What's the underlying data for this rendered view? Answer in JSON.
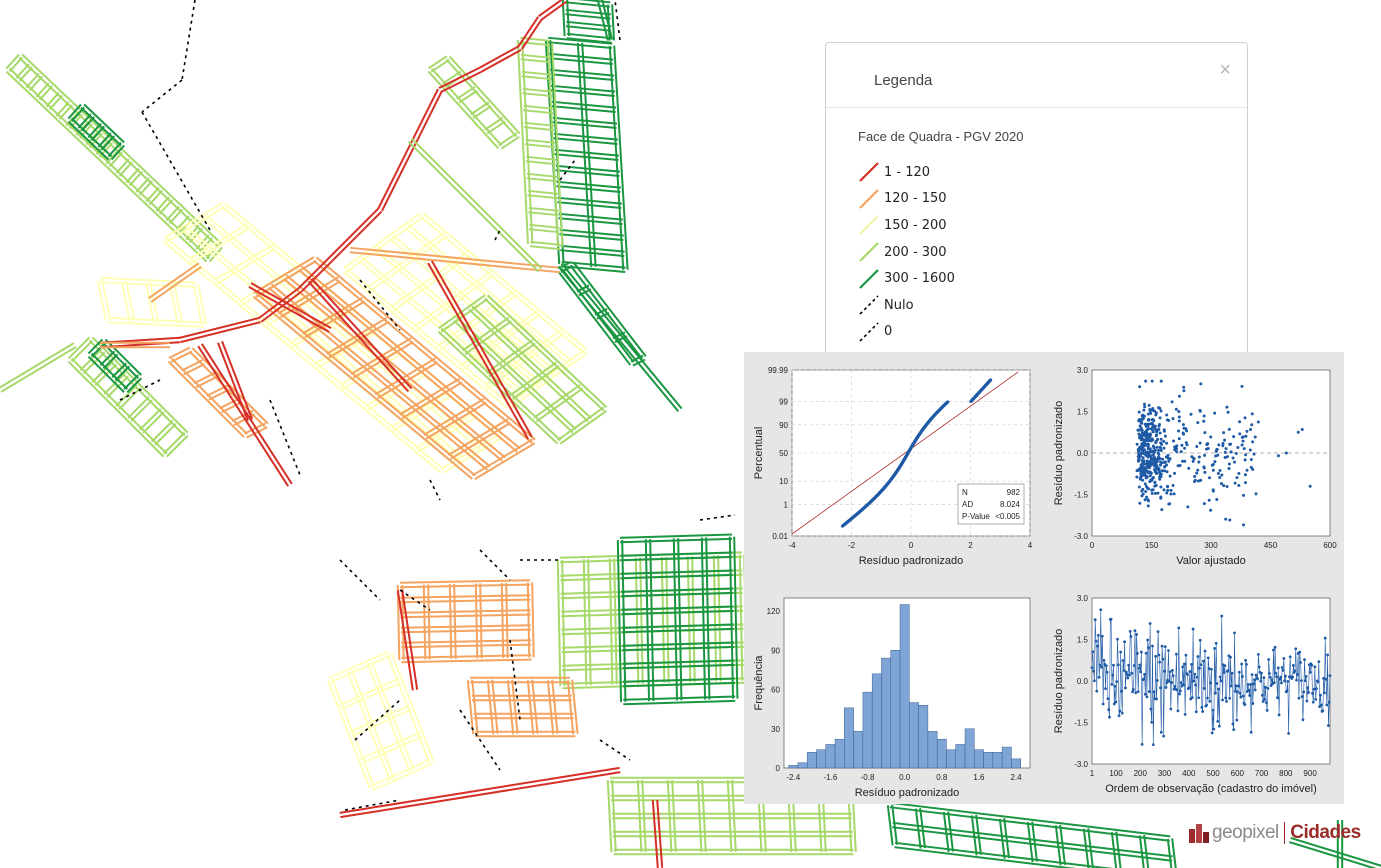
{
  "legend": {
    "title": "Legenda",
    "close_icon": "close-icon",
    "subtitle": "Face de Quadra - PGV 2020",
    "items": [
      {
        "label": "1 - 120",
        "color": "#d62f27",
        "style": "solid"
      },
      {
        "label": "120 - 150",
        "color": "#f4a460",
        "style": "solid"
      },
      {
        "label": "150 - 200",
        "color": "#ffffc0",
        "style": "solid"
      },
      {
        "label": "200 - 300",
        "color": "#a6d96a",
        "style": "solid"
      },
      {
        "label": "300 - 1600",
        "color": "#1a9641",
        "style": "solid"
      },
      {
        "label": "Nulo",
        "color": "#000000",
        "style": "dashed"
      },
      {
        "label": "0",
        "color": "#000000",
        "style": "dashed"
      }
    ]
  },
  "chart_data": [
    {
      "type": "scatter",
      "name": "probability-plot",
      "xlabel": "Resíduo padronizado",
      "ylabel": "Percentual",
      "xlim": [
        -4,
        4
      ],
      "xticks": [
        "-4",
        "-2",
        "0",
        "2",
        "4"
      ],
      "yticks": [
        "0.01",
        "1",
        "10",
        "50",
        "90",
        "99",
        "99.99"
      ],
      "stats_box": [
        {
          "label": "N",
          "value": "982"
        },
        {
          "label": "AD",
          "value": "8.024"
        },
        {
          "label": "P-Value",
          "value": "<0.005"
        }
      ]
    },
    {
      "type": "scatter",
      "name": "residuals-vs-fitted",
      "xlabel": "Valor ajustado",
      "ylabel": "Resíduo padronizado",
      "xlim": [
        0,
        600
      ],
      "ylim": [
        -3.0,
        3.0
      ],
      "xticks": [
        "0",
        "150",
        "300",
        "450",
        "600"
      ],
      "yticks": [
        "-3.0",
        "-1.5",
        "0.0",
        "1.5",
        "3.0"
      ]
    },
    {
      "type": "bar",
      "name": "histogram",
      "xlabel": "Resíduo padronizado",
      "ylabel": "Frequência",
      "xticks": [
        "-2.4",
        "-1.6",
        "-0.8",
        "0.0",
        "0.8",
        "1.6",
        "2.4"
      ],
      "yticks": [
        "0",
        "30",
        "60",
        "90",
        "120"
      ],
      "ylim": [
        0,
        130
      ],
      "bin_start": -2.5,
      "bin_width": 0.2,
      "values": [
        2,
        4,
        12,
        14,
        18,
        22,
        46,
        28,
        58,
        72,
        84,
        90,
        125,
        50,
        48,
        28,
        22,
        14,
        18,
        30,
        14,
        12,
        12,
        16,
        7
      ]
    },
    {
      "type": "line",
      "name": "residuals-vs-order",
      "xlabel": "Ordem de observação (cadastro do imóvel)",
      "ylabel": "Resíduo padronizado",
      "xlim": [
        1,
        982
      ],
      "ylim": [
        -3.0,
        3.0
      ],
      "xticks": [
        "1",
        "100",
        "200",
        "300",
        "400",
        "500",
        "600",
        "700",
        "800",
        "900"
      ],
      "yticks": [
        "-3.0",
        "-1.5",
        "0.0",
        "1.5",
        "3.0"
      ]
    }
  ],
  "brand": {
    "name": "geopixel",
    "product": "Cidades"
  }
}
